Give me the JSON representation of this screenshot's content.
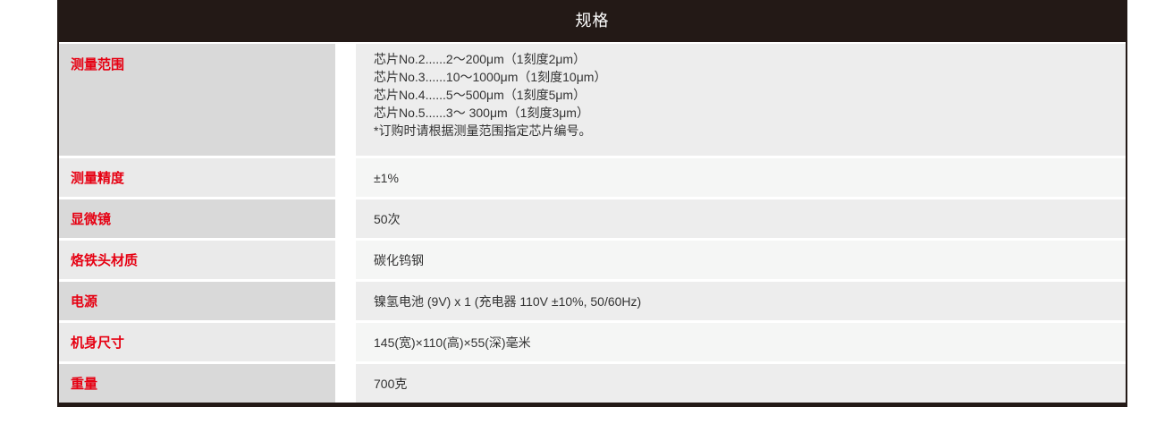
{
  "table": {
    "title": "规格",
    "rows": [
      {
        "label": "测量范围",
        "lines": [
          "芯片No.2......2～200μm（1刻度2μm）",
          "芯片No.3......10～1000μm（1刻度10μm）",
          "芯片No.4......5～500μm（1刻度5μm）",
          "芯片No.5......3～ 300μm（1刻度3μm）",
          "*订购时请根据测量范围指定芯片编号。"
        ]
      },
      {
        "label": "测量精度",
        "lines": [
          "±1%"
        ]
      },
      {
        "label": "显微镜",
        "lines": [
          "50次"
        ]
      },
      {
        "label": "烙铁头材质",
        "lines": [
          "碳化钨钢"
        ]
      },
      {
        "label": "电源",
        "lines": [
          "镍氢电池 (9V) x 1 (充电器 110V ±10%, 50/60Hz)"
        ]
      },
      {
        "label": "机身尺寸",
        "lines": [
          "145(宽)×110(高)×55(深)毫米"
        ]
      },
      {
        "label": "重量",
        "lines": [
          "700克"
        ]
      }
    ],
    "colors": {
      "header_bg": "#231916",
      "header_text": "#ffffff",
      "label_text": "#e60012",
      "value_text": "#333333",
      "label_bg_dark": "#d9d9d9",
      "label_bg_light": "#eaeaea",
      "value_bg_dark": "#ededed",
      "value_bg_light": "#f5f6f5",
      "border": "#231916"
    }
  }
}
